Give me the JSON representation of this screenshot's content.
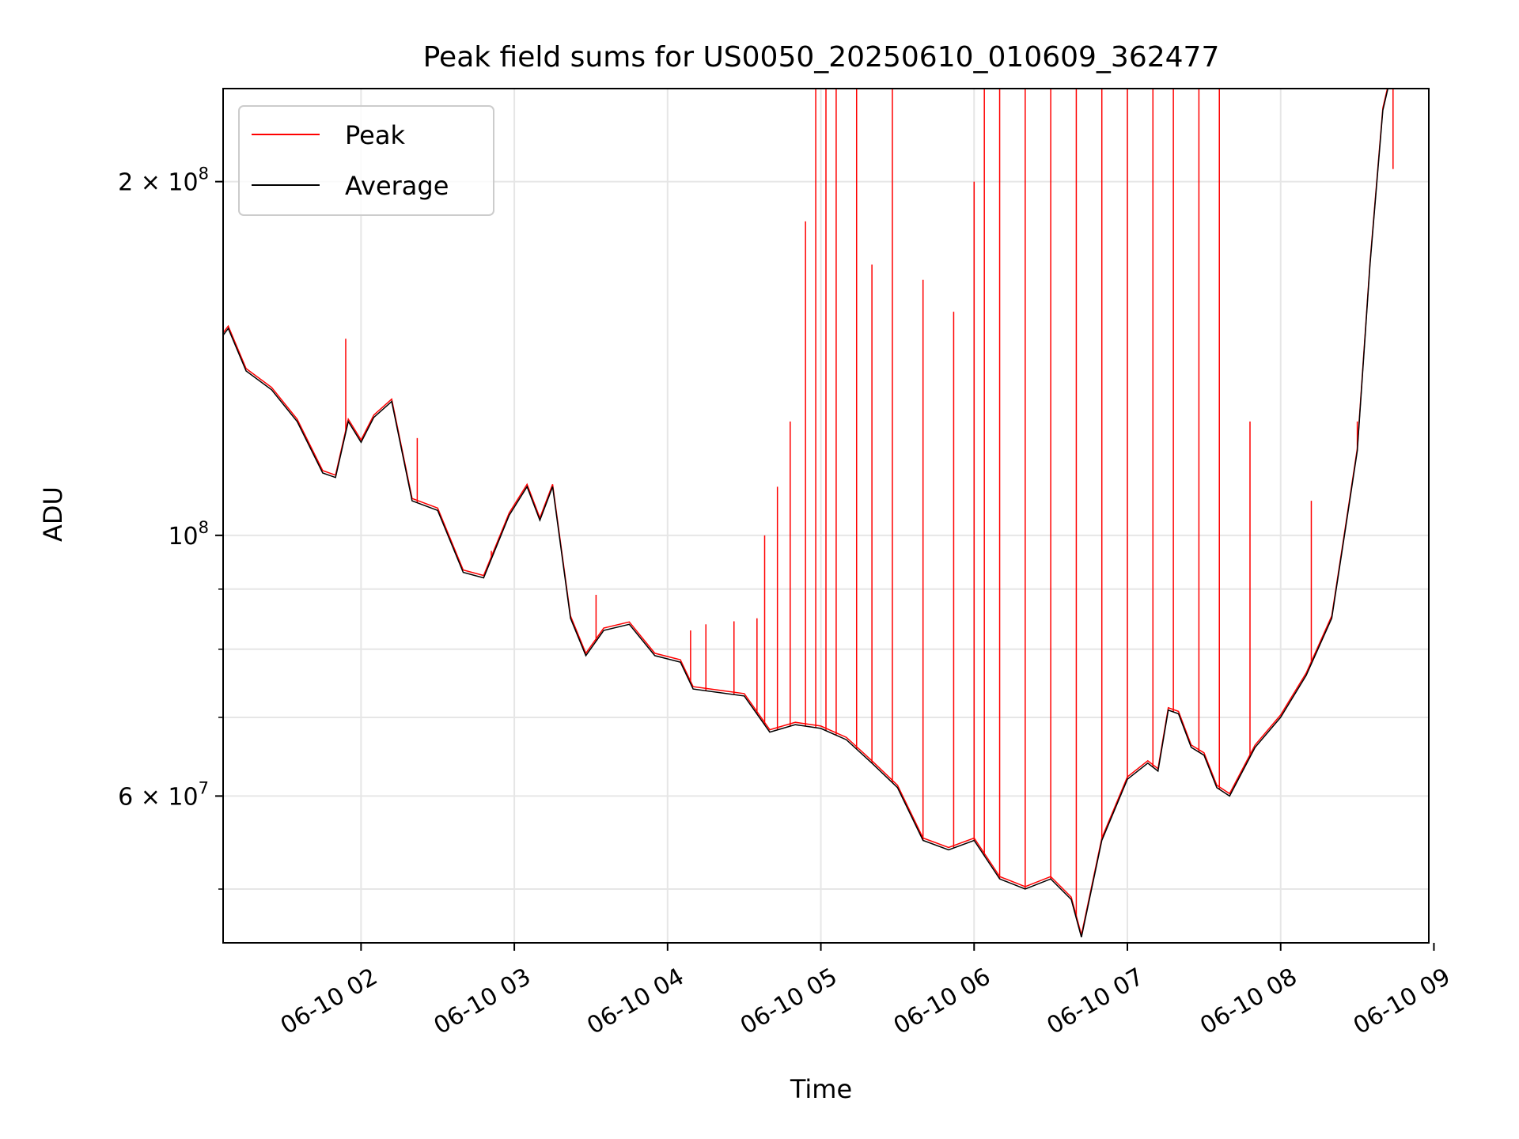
{
  "chart_data": {
    "type": "line",
    "title": "Peak field sums for US0050_20250610_010609_362477",
    "xlabel": "Time",
    "ylabel": "ADU",
    "scale_y": "log",
    "xlim": [
      "2025-06-10 01:06",
      "2025-06-10 08:58"
    ],
    "ylim": [
      45000000,
      240000000
    ],
    "x_ticks": [
      "06-10 02",
      "06-10 03",
      "06-10 04",
      "06-10 05",
      "06-10 06",
      "06-10 07",
      "06-10 08",
      "06-10 09"
    ],
    "y_ticks": [
      {
        "value": 200000000,
        "base": "2 × 10",
        "exp": "8"
      },
      {
        "value": 100000000,
        "base": "10",
        "exp": "8"
      },
      {
        "value": 60000000,
        "base": "6 × 10",
        "exp": "7"
      }
    ],
    "y_minor_ticks": [
      50000000,
      70000000,
      80000000,
      90000000
    ],
    "grid": true,
    "legend_position": "top-left",
    "series": [
      {
        "name": "Peak",
        "color": "#ff0000",
        "note_style": "baseline follows average with frequent upward spikes",
        "spikes": [
          [
            "2025-06-10 01:54",
            147000000
          ],
          [
            "2025-06-10 02:22",
            121000000
          ],
          [
            "2025-06-10 02:51",
            97000000
          ],
          [
            "2025-06-10 03:32",
            89000000
          ],
          [
            "2025-06-10 04:09",
            83000000
          ],
          [
            "2025-06-10 04:15",
            84000000
          ],
          [
            "2025-06-10 04:26",
            84500000
          ],
          [
            "2025-06-10 04:35",
            85000000
          ],
          [
            "2025-06-10 04:38",
            100000000
          ],
          [
            "2025-06-10 04:43",
            110000000
          ],
          [
            "2025-06-10 04:48",
            125000000
          ],
          [
            "2025-06-10 04:54",
            185000000
          ],
          [
            "2025-06-10 04:58",
            240000000
          ],
          [
            "2025-06-10 05:02",
            240000000
          ],
          [
            "2025-06-10 05:06",
            240000000
          ],
          [
            "2025-06-10 05:14",
            240000000
          ],
          [
            "2025-06-10 05:20",
            170000000
          ],
          [
            "2025-06-10 05:28",
            240000000
          ],
          [
            "2025-06-10 05:40",
            165000000
          ],
          [
            "2025-06-10 05:52",
            155000000
          ],
          [
            "2025-06-10 06:00",
            200000000
          ],
          [
            "2025-06-10 06:04",
            240000000
          ],
          [
            "2025-06-10 06:10",
            240000000
          ],
          [
            "2025-06-10 06:20",
            240000000
          ],
          [
            "2025-06-10 06:30",
            240000000
          ],
          [
            "2025-06-10 06:40",
            240000000
          ],
          [
            "2025-06-10 06:50",
            240000000
          ],
          [
            "2025-06-10 07:00",
            240000000
          ],
          [
            "2025-06-10 07:10",
            240000000
          ],
          [
            "2025-06-10 07:18",
            240000000
          ],
          [
            "2025-06-10 07:28",
            240000000
          ],
          [
            "2025-06-10 07:36",
            240000000
          ],
          [
            "2025-06-10 07:48",
            125000000
          ],
          [
            "2025-06-10 08:12",
            107000000
          ],
          [
            "2025-06-10 08:30",
            125000000
          ],
          [
            "2025-06-10 08:44",
            205000000
          ]
        ]
      },
      {
        "name": "Average",
        "color": "#000000",
        "points": [
          [
            "2025-06-10 01:06",
            148000000
          ],
          [
            "2025-06-10 01:08",
            150000000
          ],
          [
            "2025-06-10 01:15",
            138000000
          ],
          [
            "2025-06-10 01:25",
            133000000
          ],
          [
            "2025-06-10 01:35",
            125000000
          ],
          [
            "2025-06-10 01:45",
            113000000
          ],
          [
            "2025-06-10 01:50",
            112000000
          ],
          [
            "2025-06-10 01:55",
            125000000
          ],
          [
            "2025-06-10 02:00",
            120000000
          ],
          [
            "2025-06-10 02:05",
            126000000
          ],
          [
            "2025-06-10 02:12",
            130000000
          ],
          [
            "2025-06-10 02:20",
            107000000
          ],
          [
            "2025-06-10 02:30",
            105000000
          ],
          [
            "2025-06-10 02:40",
            93000000
          ],
          [
            "2025-06-10 02:48",
            92000000
          ],
          [
            "2025-06-10 02:58",
            104000000
          ],
          [
            "2025-06-10 03:05",
            110000000
          ],
          [
            "2025-06-10 03:10",
            103000000
          ],
          [
            "2025-06-10 03:15",
            110000000
          ],
          [
            "2025-06-10 03:22",
            85000000
          ],
          [
            "2025-06-10 03:28",
            79000000
          ],
          [
            "2025-06-10 03:35",
            83000000
          ],
          [
            "2025-06-10 03:45",
            84000000
          ],
          [
            "2025-06-10 03:55",
            79000000
          ],
          [
            "2025-06-10 04:05",
            78000000
          ],
          [
            "2025-06-10 04:10",
            74000000
          ],
          [
            "2025-06-10 04:20",
            73500000
          ],
          [
            "2025-06-10 04:30",
            73000000
          ],
          [
            "2025-06-10 04:40",
            68000000
          ],
          [
            "2025-06-10 04:50",
            69000000
          ],
          [
            "2025-06-10 05:00",
            68500000
          ],
          [
            "2025-06-10 05:10",
            67000000
          ],
          [
            "2025-06-10 05:20",
            64000000
          ],
          [
            "2025-06-10 05:30",
            61000000
          ],
          [
            "2025-06-10 05:40",
            55000000
          ],
          [
            "2025-06-10 05:50",
            54000000
          ],
          [
            "2025-06-10 06:00",
            55000000
          ],
          [
            "2025-06-10 06:10",
            51000000
          ],
          [
            "2025-06-10 06:20",
            50000000
          ],
          [
            "2025-06-10 06:30",
            51000000
          ],
          [
            "2025-06-10 06:38",
            49000000
          ],
          [
            "2025-06-10 06:42",
            45500000
          ],
          [
            "2025-06-10 06:50",
            55000000
          ],
          [
            "2025-06-10 07:00",
            62000000
          ],
          [
            "2025-06-10 07:08",
            64000000
          ],
          [
            "2025-06-10 07:12",
            63000000
          ],
          [
            "2025-06-10 07:16",
            71000000
          ],
          [
            "2025-06-10 07:20",
            70500000
          ],
          [
            "2025-06-10 07:25",
            66000000
          ],
          [
            "2025-06-10 07:30",
            65000000
          ],
          [
            "2025-06-10 07:35",
            61000000
          ],
          [
            "2025-06-10 07:40",
            60000000
          ],
          [
            "2025-06-10 07:50",
            66000000
          ],
          [
            "2025-06-10 08:00",
            70000000
          ],
          [
            "2025-06-10 08:10",
            76000000
          ],
          [
            "2025-06-10 08:20",
            85000000
          ],
          [
            "2025-06-10 08:25",
            100000000
          ],
          [
            "2025-06-10 08:30",
            118000000
          ],
          [
            "2025-06-10 08:35",
            170000000
          ],
          [
            "2025-06-10 08:40",
            230000000
          ],
          [
            "2025-06-10 08:42",
            240000000
          ]
        ]
      }
    ]
  }
}
